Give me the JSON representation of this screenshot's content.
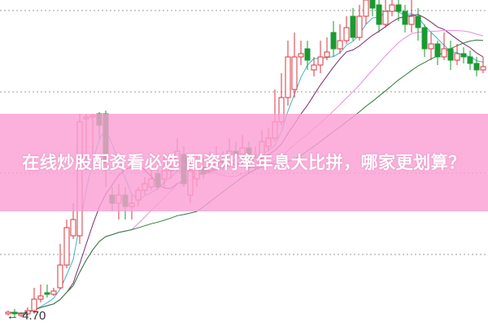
{
  "banner": {
    "title": "在线炒股配资看必选 配资利率年息大比拼，哪家更划算？"
  },
  "chart_data": {
    "type": "candlestick",
    "annotation": "4.70",
    "grid": "dotted horizontal",
    "colors": {
      "up": "#d9363e",
      "down": "#1a9a32",
      "ma5": "#3fb6c4",
      "ma10": "#7a2a6a",
      "ma20": "#e98be0",
      "ma30": "#2e7a3a"
    },
    "candles": [
      [
        4.72,
        4.73,
        4.74,
        4.71
      ],
      [
        4.73,
        4.72,
        4.75,
        4.7
      ],
      [
        4.71,
        4.72,
        4.73,
        4.7
      ],
      [
        4.72,
        4.74,
        4.76,
        4.71
      ],
      [
        4.74,
        4.81,
        4.88,
        4.72
      ],
      [
        4.81,
        4.83,
        4.9,
        4.79
      ],
      [
        4.85,
        4.84,
        4.9,
        4.82
      ],
      [
        4.84,
        4.86,
        4.88,
        4.83
      ],
      [
        4.88,
        5.02,
        5.15,
        4.87
      ],
      [
        5.02,
        5.25,
        5.3,
        5.0
      ],
      [
        5.2,
        5.3,
        5.4,
        5.18
      ],
      [
        5.2,
        5.9,
        5.95,
        5.15
      ],
      [
        5.92,
        5.93,
        5.95,
        5.6
      ],
      [
        5.93,
        5.94,
        5.95,
        5.7
      ],
      [
        5.95,
        5.88,
        5.96,
        5.8
      ],
      [
        5.95,
        5.65,
        5.97,
        5.5
      ],
      [
        5.45,
        5.4,
        5.5,
        5.35
      ],
      [
        5.4,
        5.45,
        5.52,
        5.3
      ],
      [
        5.45,
        5.38,
        5.5,
        5.3
      ],
      [
        5.38,
        5.4,
        5.45,
        5.3
      ],
      [
        5.42,
        5.48,
        5.5,
        5.38
      ],
      [
        5.48,
        5.52,
        5.56,
        5.45
      ],
      [
        5.5,
        5.55,
        5.62,
        5.48
      ],
      [
        5.58,
        5.5,
        5.62,
        5.48
      ],
      [
        5.55,
        5.6,
        5.7,
        5.5
      ],
      [
        5.6,
        5.62,
        5.68,
        5.55
      ],
      [
        5.62,
        5.72,
        5.8,
        5.6
      ],
      [
        5.7,
        5.52,
        5.75,
        5.5
      ],
      [
        5.45,
        5.6,
        5.65,
        5.4
      ],
      [
        5.55,
        5.62,
        5.7,
        5.5
      ],
      [
        5.62,
        5.58,
        5.68,
        5.55
      ],
      [
        5.6,
        5.64,
        5.72,
        5.58
      ],
      [
        5.64,
        5.66,
        5.75,
        5.6
      ],
      [
        5.66,
        5.65,
        5.72,
        5.6
      ],
      [
        5.65,
        5.72,
        5.8,
        5.62
      ],
      [
        5.72,
        5.7,
        5.78,
        5.65
      ],
      [
        5.7,
        5.74,
        5.82,
        5.66
      ],
      [
        5.74,
        5.62,
        5.78,
        5.58
      ],
      [
        5.62,
        5.68,
        5.75,
        5.6
      ],
      [
        5.68,
        5.78,
        5.85,
        5.62
      ],
      [
        5.75,
        5.8,
        5.86,
        5.72
      ],
      [
        5.8,
        5.9,
        6.1,
        5.78
      ],
      [
        5.9,
        6.05,
        6.2,
        5.88
      ],
      [
        6.05,
        6.3,
        6.4,
        6.0
      ],
      [
        6.1,
        6.3,
        6.45,
        6.05
      ],
      [
        6.3,
        6.32,
        6.4,
        6.25
      ],
      [
        6.35,
        6.28,
        6.4,
        6.22
      ],
      [
        6.22,
        6.25,
        6.3,
        6.18
      ],
      [
        6.25,
        6.3,
        6.4,
        6.2
      ],
      [
        6.3,
        6.33,
        6.42,
        6.28
      ],
      [
        6.45,
        6.35,
        6.52,
        6.3
      ],
      [
        6.35,
        6.4,
        6.5,
        6.32
      ],
      [
        6.4,
        6.48,
        6.55,
        6.38
      ],
      [
        6.55,
        6.42,
        6.6,
        6.4
      ],
      [
        6.42,
        6.55,
        6.62,
        6.4
      ],
      [
        6.55,
        6.65,
        6.68,
        6.5
      ],
      [
        6.65,
        6.6,
        6.68,
        6.55
      ],
      [
        6.62,
        6.5,
        6.68,
        6.45
      ],
      [
        6.5,
        6.58,
        6.65,
        6.48
      ],
      [
        6.58,
        6.62,
        6.7,
        6.55
      ],
      [
        6.62,
        6.58,
        6.68,
        6.52
      ],
      [
        6.58,
        6.5,
        6.62,
        6.45
      ],
      [
        6.5,
        6.55,
        6.68,
        6.45
      ],
      [
        6.55,
        6.48,
        6.6,
        6.4
      ],
      [
        6.48,
        6.35,
        6.5,
        6.3
      ],
      [
        6.35,
        6.38,
        6.45,
        6.28
      ],
      [
        6.38,
        6.3,
        6.4,
        6.25
      ],
      [
        6.3,
        6.35,
        6.45,
        6.28
      ],
      [
        6.35,
        6.28,
        6.4,
        6.22
      ],
      [
        6.28,
        6.32,
        6.38,
        6.25
      ],
      [
        6.32,
        6.3,
        6.36,
        6.26
      ],
      [
        6.3,
        6.26,
        6.34,
        6.22
      ],
      [
        6.26,
        6.22,
        6.3,
        6.18
      ],
      [
        6.22,
        6.24,
        6.3,
        6.2
      ]
    ],
    "ma_periods": [
      5,
      10,
      20,
      30
    ]
  }
}
